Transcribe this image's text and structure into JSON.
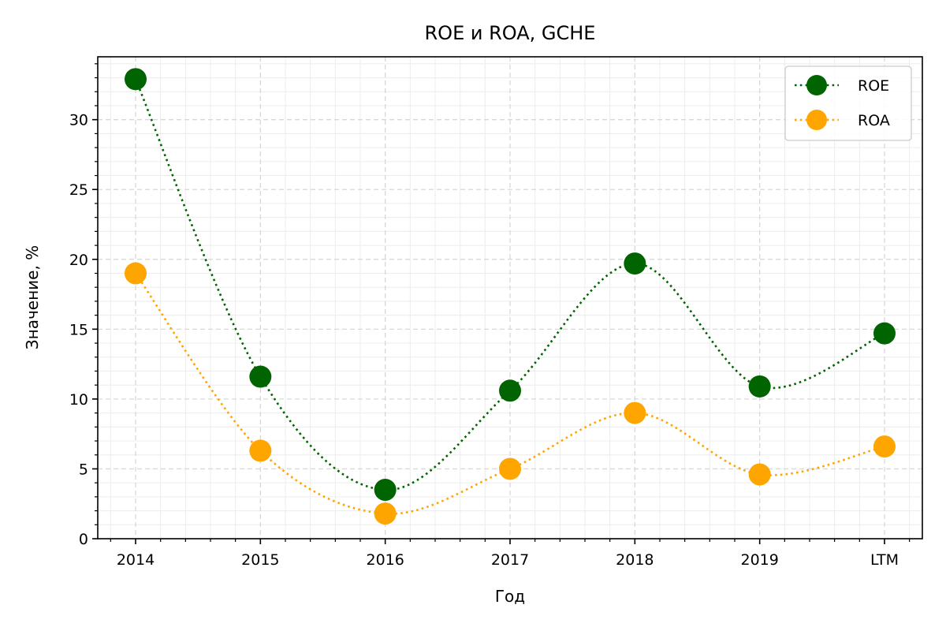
{
  "chart_data": {
    "type": "line",
    "title": "ROE и ROA, GCHE",
    "xlabel": "Год",
    "ylabel": "Значение, %",
    "categories": [
      "2014",
      "2015",
      "2016",
      "2017",
      "2018",
      "2019",
      "LTM"
    ],
    "ylim": [
      0,
      34.5
    ],
    "yticks": [
      0,
      5,
      10,
      15,
      20,
      25,
      30
    ],
    "grid": true,
    "legend_position": "top-right",
    "series": [
      {
        "name": "ROE",
        "color": "#006400",
        "values": [
          32.9,
          11.6,
          3.5,
          10.6,
          19.7,
          10.9,
          14.7
        ]
      },
      {
        "name": "ROA",
        "color": "#FFA500",
        "values": [
          19.0,
          6.3,
          1.8,
          5.0,
          9.0,
          4.6,
          6.6
        ]
      }
    ]
  }
}
